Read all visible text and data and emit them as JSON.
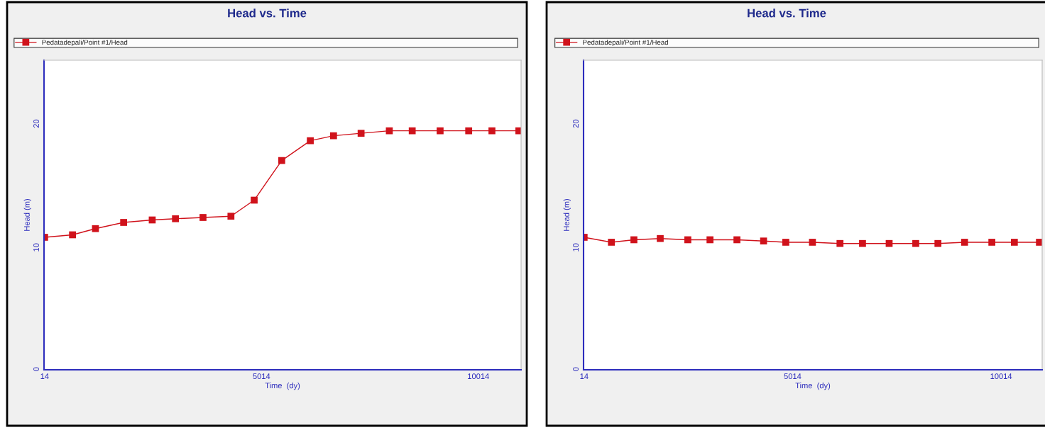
{
  "chart_data": [
    {
      "type": "line",
      "title": "Head vs. Time",
      "xlabel": "Time  (dy)",
      "ylabel": "Head (m)",
      "x": [
        14,
        657,
        1186,
        1836,
        2495,
        3031,
        3666,
        4310,
        4846,
        5481,
        6140,
        6676,
        7311,
        7962,
        8490,
        9133,
        9792,
        10328,
        10948
      ],
      "series": [
        {
          "name": "Pedatadepali/Point #1/Head",
          "color": "#d0121b",
          "values": [
            10.7,
            10.9,
            11.4,
            11.9,
            12.1,
            12.2,
            12.3,
            12.4,
            13.7,
            16.9,
            18.5,
            18.9,
            19.1,
            19.3,
            19.3,
            19.3,
            19.3,
            19.3,
            19.3
          ]
        }
      ],
      "xlim": [
        0,
        11000
      ],
      "ylim": [
        0,
        25
      ],
      "xticks": [
        14,
        5014,
        10014
      ],
      "yticks": [
        0,
        10,
        20
      ],
      "legend": "top",
      "marker": "square",
      "grid": false
    },
    {
      "type": "line",
      "title": "Head vs. Time",
      "xlabel": "Time  (dy)",
      "ylabel": "Head (m)",
      "x": [
        14,
        668,
        1208,
        1839,
        2501,
        3033,
        3679,
        4318,
        4851,
        5490,
        6151,
        6691,
        7330,
        7968,
        8500,
        9139,
        9793,
        10333,
        10934
      ],
      "series": [
        {
          "name": "Pedatadepali/Point #1/Head",
          "color": "#d0121b",
          "values": [
            10.7,
            10.3,
            10.5,
            10.6,
            10.5,
            10.5,
            10.5,
            10.4,
            10.3,
            10.3,
            10.2,
            10.2,
            10.2,
            10.2,
            10.2,
            10.3,
            10.3,
            10.3,
            10.3
          ]
        }
      ],
      "xlim": [
        0,
        11000
      ],
      "ylim": [
        0,
        25
      ],
      "xticks": [
        14,
        5014,
        10014
      ],
      "yticks": [
        0,
        10,
        20
      ],
      "legend": "top",
      "marker": "square",
      "grid": false
    }
  ]
}
